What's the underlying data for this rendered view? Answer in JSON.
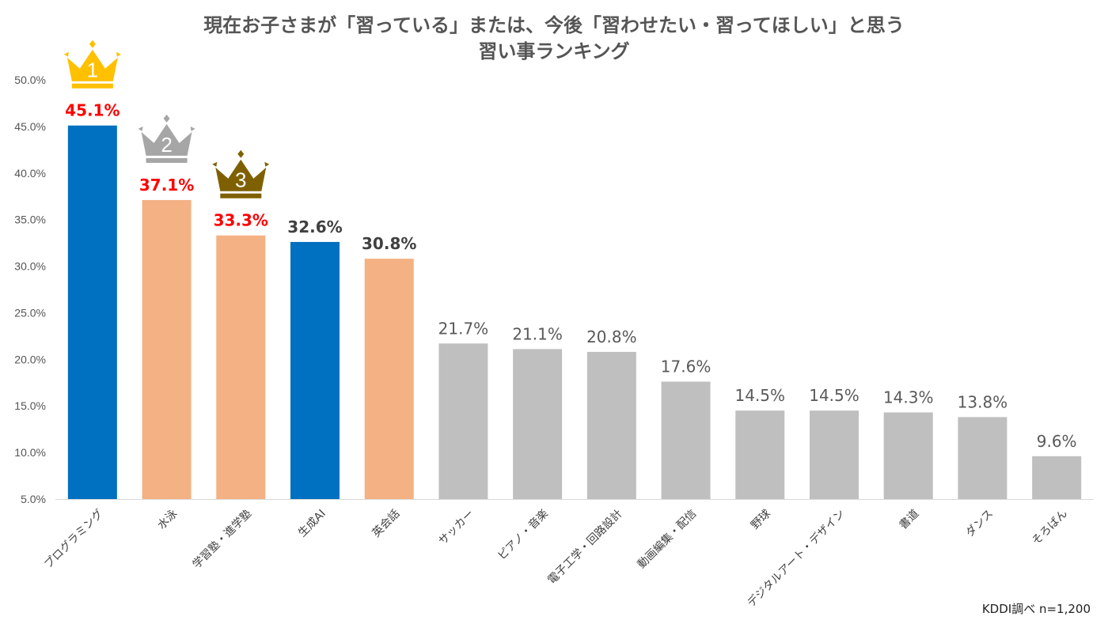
{
  "chart_data": {
    "type": "bar",
    "title_lines": [
      "現在お子さまが「習っている」または、今後「習わせたい・習ってほしい」と思う",
      "習い事ランキング"
    ],
    "categories": [
      "プログラミング",
      "水泳",
      "学習塾・進学塾",
      "生成AI",
      "英会話",
      "サッカー",
      "ピアノ・音楽",
      "電子工学・回路設計",
      "動画編集・配信",
      "野球",
      "デジタルアート・デザイン",
      "書道",
      "ダンス",
      "そろばん"
    ],
    "values": [
      45.1,
      37.1,
      33.3,
      32.6,
      30.8,
      21.7,
      21.1,
      20.8,
      17.6,
      14.5,
      14.5,
      14.3,
      13.8,
      9.6
    ],
    "value_labels": [
      "45.1%",
      "37.1%",
      "33.3%",
      "32.6%",
      "30.8%",
      "21.7%",
      "21.1%",
      "20.8%",
      "17.6%",
      "14.5%",
      "14.5%",
      "14.3%",
      "13.8%",
      "9.6%"
    ],
    "bar_colors": [
      "#0070c0",
      "#f4b183",
      "#f4b183",
      "#0070c0",
      "#f4b183",
      "#bfbfbf",
      "#bfbfbf",
      "#bfbfbf",
      "#bfbfbf",
      "#bfbfbf",
      "#bfbfbf",
      "#bfbfbf",
      "#bfbfbf",
      "#bfbfbf"
    ],
    "label_colors": [
      "#ff0000",
      "#ff0000",
      "#ff0000",
      "#404040",
      "#404040",
      "#595959",
      "#595959",
      "#595959",
      "#595959",
      "#595959",
      "#595959",
      "#595959",
      "#595959",
      "#595959"
    ],
    "label_bold": [
      true,
      true,
      true,
      true,
      true,
      false,
      false,
      false,
      false,
      false,
      false,
      false,
      false,
      false
    ],
    "ylim": [
      5,
      50
    ],
    "yticks": [
      5,
      10,
      15,
      20,
      25,
      30,
      35,
      40,
      45,
      50
    ],
    "ytick_labels": [
      "5.0%",
      "10.0%",
      "15.0%",
      "20.0%",
      "25.0%",
      "30.0%",
      "35.0%",
      "40.0%",
      "45.0%",
      "50.0%"
    ],
    "xlabel": "",
    "ylabel": "",
    "grid": false,
    "crowns": [
      {
        "rank": "1",
        "color": "#ffc000",
        "bar_index": 0
      },
      {
        "rank": "2",
        "color": "#a6a6a6",
        "bar_index": 1
      },
      {
        "rank": "3",
        "color": "#7f6000",
        "bar_index": 2
      }
    ]
  },
  "source_note": "KDDI調べ  n=1,200"
}
